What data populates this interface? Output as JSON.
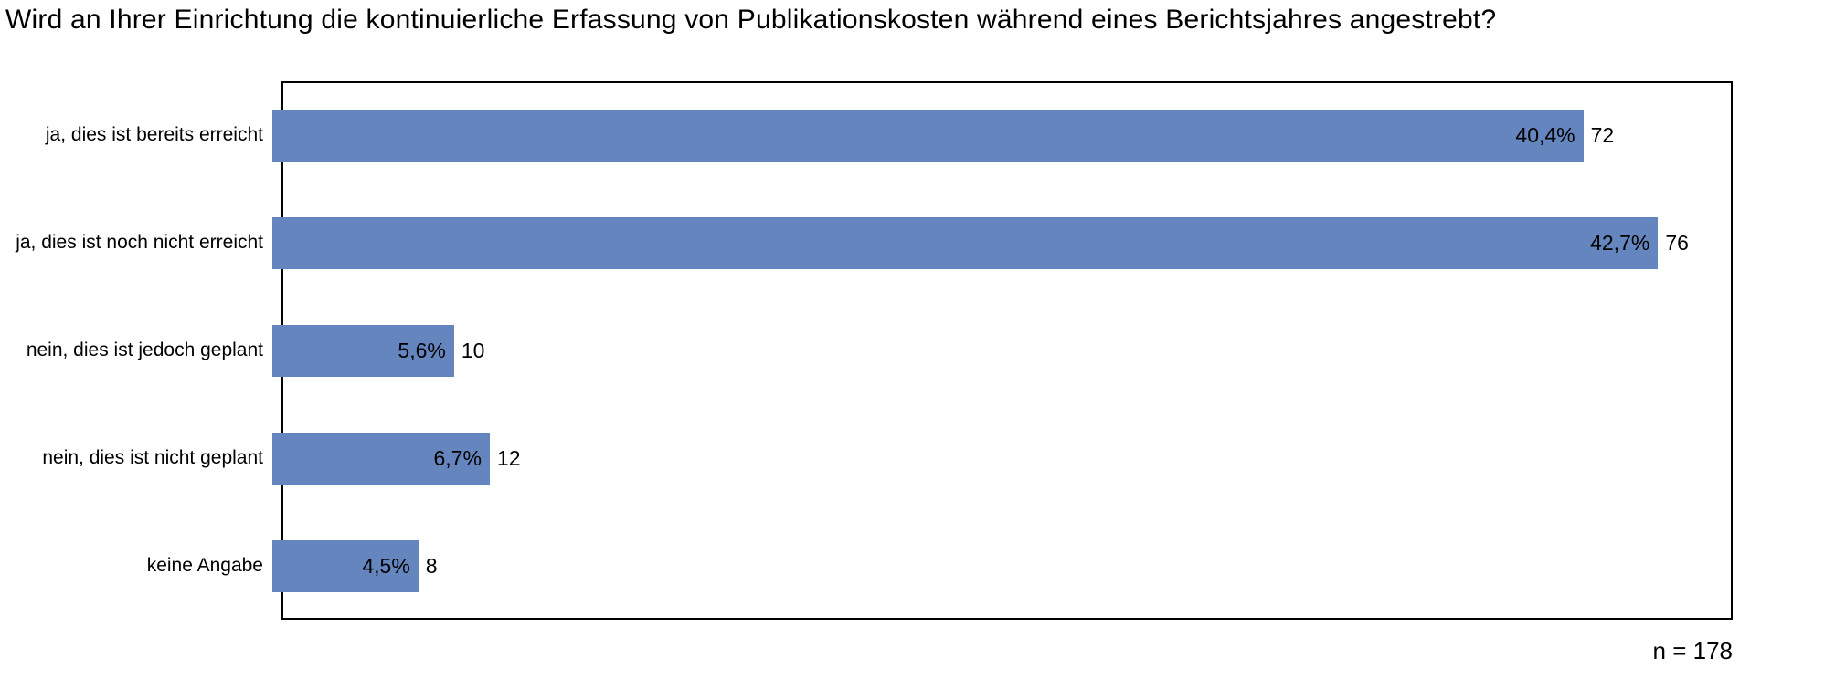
{
  "page": {
    "title": "Wird an Ihrer Einrichtung die kontinuierliche Erfassung von Publikationskosten während eines Berichtsjahres angestrebt?",
    "sample_size_label": "n = 178"
  },
  "chart_data": {
    "type": "bar",
    "orientation": "horizontal",
    "title": "Wird an Ihrer Einrichtung die kontinuierliche Erfassung von Publikationskosten während eines Berichtsjahres angestrebt?",
    "categories": [
      "ja, dies ist bereits erreicht",
      "ja, dies ist noch nicht erreicht",
      "nein, dies ist jedoch geplant",
      "nein, dies ist nicht geplant",
      "keine Angabe"
    ],
    "values_percent": [
      40.4,
      42.7,
      5.6,
      6.7,
      4.5
    ],
    "counts": [
      72,
      76,
      10,
      12,
      8
    ],
    "percent_labels": [
      "40,4%",
      "42,7%",
      "5,6%",
      "6,7%",
      "4,5%"
    ],
    "count_labels": [
      "72",
      "76",
      "10",
      "12",
      "8"
    ],
    "xlim": [
      0,
      45
    ],
    "grid": false,
    "legend": false,
    "annotation": "n = 178",
    "bar_color": "#6585BE",
    "plot_border_color": "#000000"
  }
}
